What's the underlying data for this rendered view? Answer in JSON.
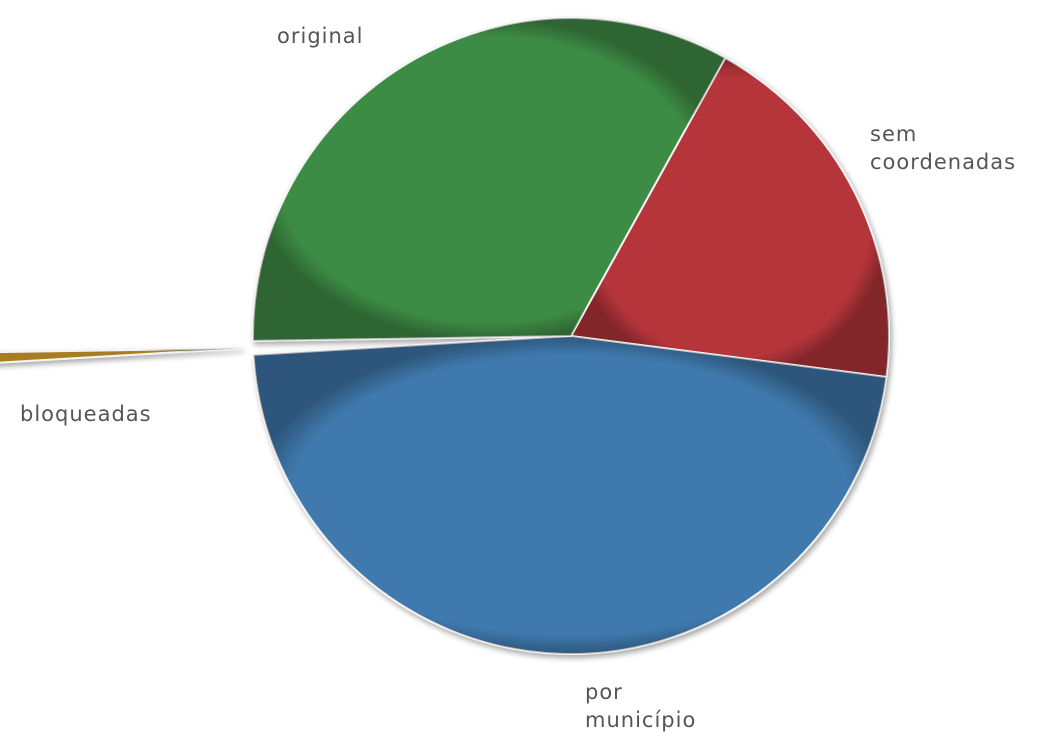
{
  "chart_data": {
    "type": "pie",
    "slices": [
      {
        "label": "sem coordenadas",
        "label_lines": [
          "sem",
          "coordenadas"
        ],
        "value": 19.0,
        "color": "#b5353a",
        "explode": false
      },
      {
        "label": "por município",
        "label_lines": [
          "por",
          "município"
        ],
        "value": 47.0,
        "color": "#3f79ad",
        "explode": false
      },
      {
        "label": "bloqueadas",
        "label_lines": [
          "bloqueadas"
        ],
        "value": 0.7,
        "color": "#a87d22",
        "explode": true
      },
      {
        "label": "original",
        "label_lines": [
          "original"
        ],
        "value": 33.3,
        "color": "#3e8c45",
        "explode": false
      }
    ],
    "start_angle_deg": -61,
    "direction": "clockwise",
    "legend": "none",
    "title": ""
  }
}
